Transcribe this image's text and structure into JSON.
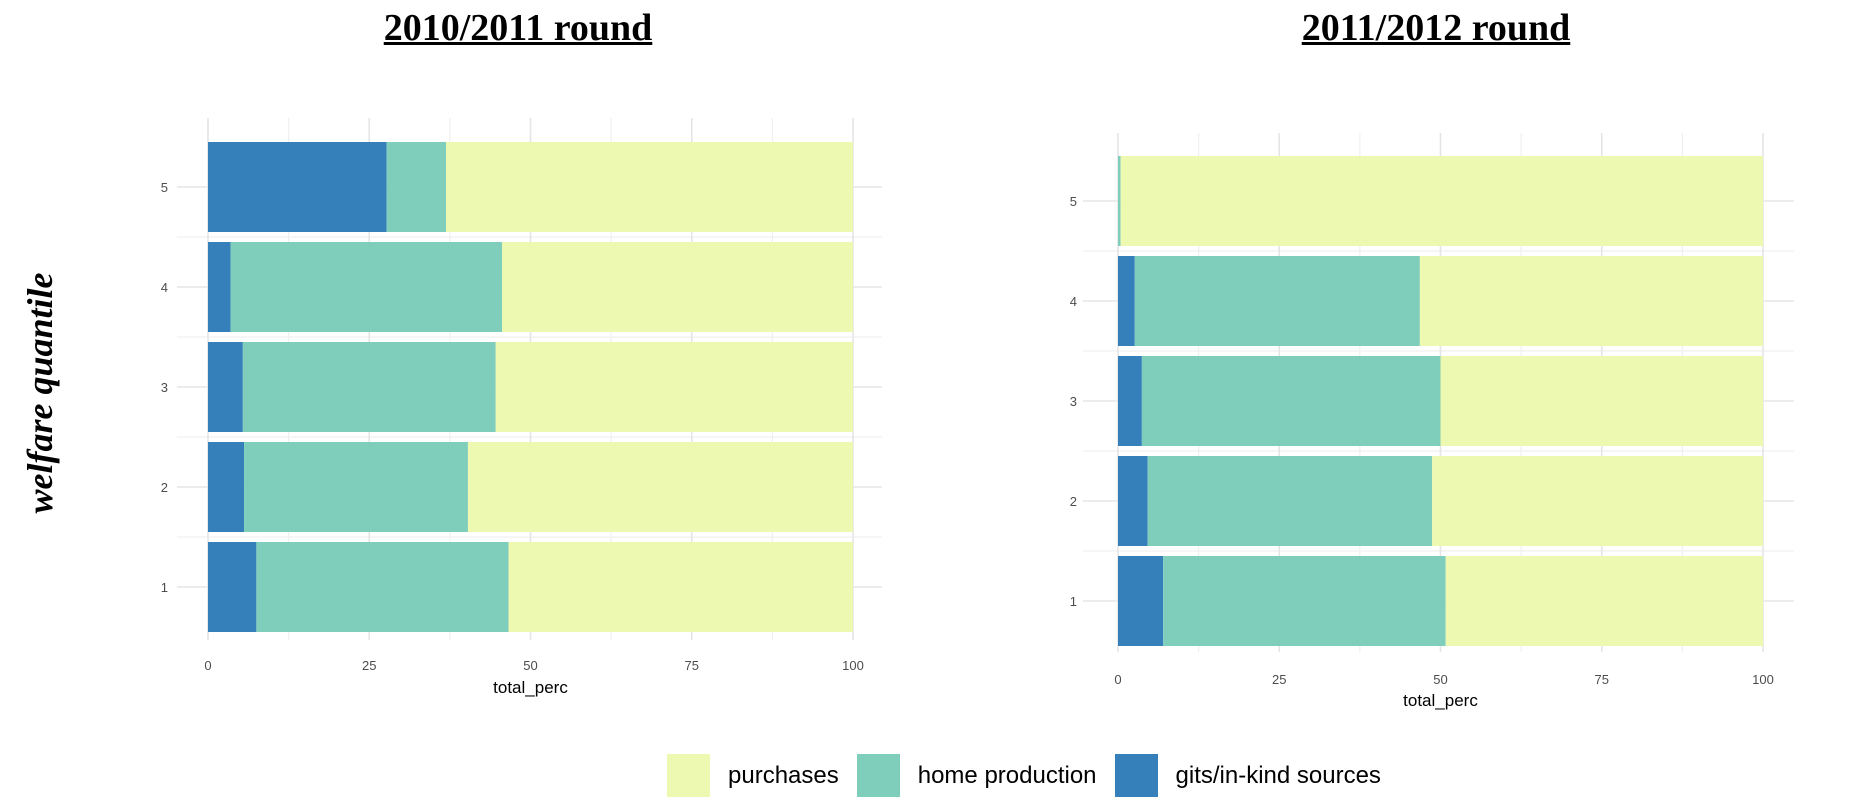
{
  "colors": {
    "purchases": "#edf8b1",
    "home_production": "#7fcdbb",
    "gifts": "#3580bb",
    "grid_major": "#e5e5e5",
    "grid_minor": "#f0f0f0"
  },
  "y_axis_title": "welfare quantile",
  "legend": [
    {
      "key": "purchases",
      "label": "purchases"
    },
    {
      "key": "home_production",
      "label": "home production"
    },
    {
      "key": "gifts",
      "label": "gits/in-kind sources"
    }
  ],
  "chart_data": [
    {
      "type": "bar",
      "orientation": "horizontal",
      "stacked": true,
      "title": "2010/2011 round",
      "xlabel": "total_perc",
      "ylabel": "welfare quantile",
      "xlim": [
        0,
        100
      ],
      "xticks": [
        "0",
        "25",
        "50",
        "75",
        "100"
      ],
      "categories": [
        "1",
        "2",
        "3",
        "4",
        "5"
      ],
      "series": [
        {
          "key": "gifts",
          "name": "gits/in-kind sources",
          "values": [
            7.5,
            5.6,
            5.4,
            3.5,
            27.7
          ]
        },
        {
          "key": "home_production",
          "name": "home production",
          "values": [
            39.1,
            34.7,
            39.2,
            42.1,
            9.2
          ]
        },
        {
          "key": "purchases",
          "name": "purchases",
          "values": [
            53.4,
            59.7,
            55.4,
            54.4,
            63.1
          ]
        }
      ]
    },
    {
      "type": "bar",
      "orientation": "horizontal",
      "stacked": true,
      "title": "2011/2012 round",
      "xlabel": "total_perc",
      "ylabel": "",
      "xlim": [
        0,
        100
      ],
      "xticks": [
        "0",
        "25",
        "50",
        "75",
        "100"
      ],
      "categories": [
        "1",
        "2",
        "3",
        "4",
        "5"
      ],
      "series": [
        {
          "key": "gifts",
          "name": "gits/in-kind sources",
          "values": [
            7.0,
            4.6,
            3.7,
            2.6,
            0.0
          ]
        },
        {
          "key": "home_production",
          "name": "home production",
          "values": [
            43.8,
            44.1,
            46.3,
            44.2,
            0.4
          ]
        },
        {
          "key": "purchases",
          "name": "purchases",
          "values": [
            49.2,
            51.3,
            50.0,
            53.2,
            99.6
          ]
        }
      ]
    }
  ]
}
